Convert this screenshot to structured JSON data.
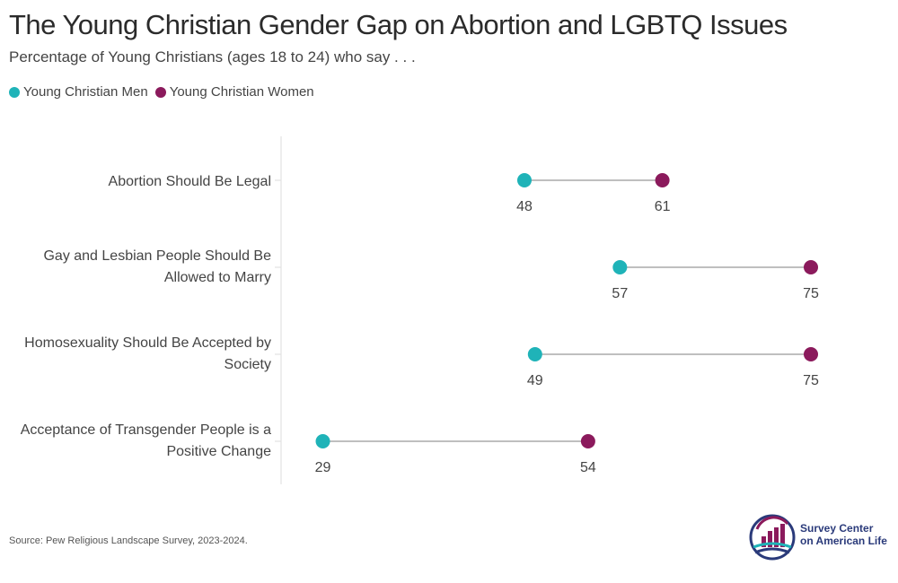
{
  "header": {
    "title": "The Young Christian Gender Gap on Abortion and LGBTQ Issues",
    "subtitle": "Percentage of Young Christians (ages 18 to 24) who say . . ."
  },
  "colors": {
    "men": "#1fb3b8",
    "women": "#8b1a5c",
    "connector": "#aaaaaa",
    "axis": "#dddddd"
  },
  "chart_data": {
    "type": "dot-plot",
    "x_range": [
      25,
      80
    ],
    "grid": false,
    "legend_position": "top-left",
    "series": [
      {
        "name": "Young Christian Men",
        "color": "#1fb3b8"
      },
      {
        "name": "Young Christian Women",
        "color": "#8b1a5c"
      }
    ],
    "categories": [
      {
        "label_lines": [
          "Abortion Should Be Legal"
        ],
        "men": 48,
        "women": 61
      },
      {
        "label_lines": [
          "Gay and Lesbian People Should Be",
          "Allowed to Marry"
        ],
        "men": 57,
        "women": 75
      },
      {
        "label_lines": [
          "Homosexuality Should Be Accepted by",
          "Society"
        ],
        "men": 49,
        "women": 75
      },
      {
        "label_lines": [
          "Acceptance of Transgender People is a",
          "Positive Change"
        ],
        "men": 29,
        "women": 54
      }
    ]
  },
  "footer": {
    "source": "Source: Pew Religious Landscape Survey, 2023-2024.",
    "logo_line1": "Survey Center",
    "logo_line2": "on American Life"
  }
}
